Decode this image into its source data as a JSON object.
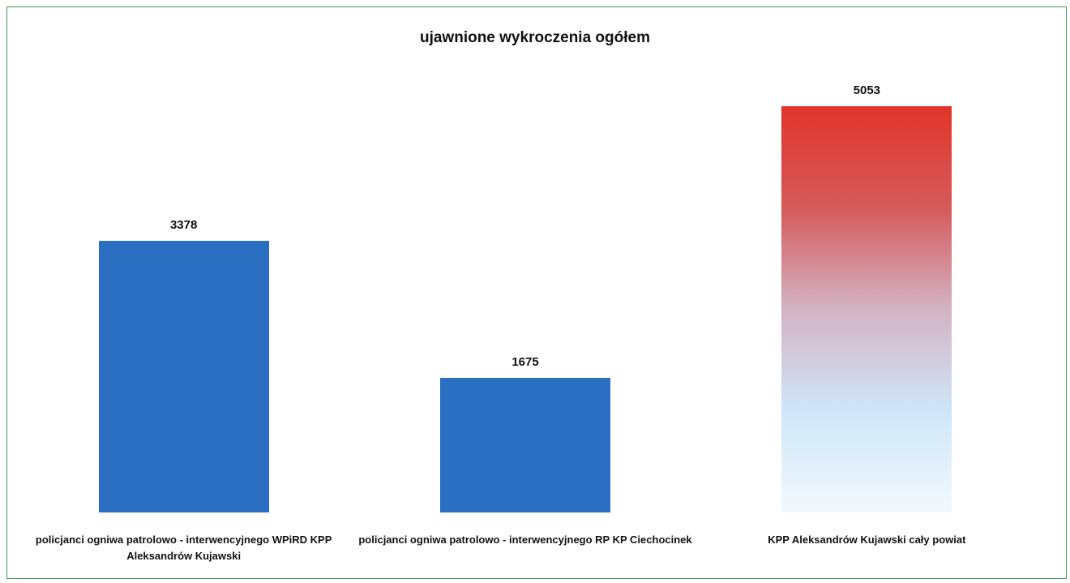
{
  "chart_data": {
    "type": "bar",
    "title": "ujawnione wykroczenia ogółem",
    "categories": [
      "policjanci ogniwa patrolowo - interwencyjnego WPiRD KPP Aleksandrów Kujawski",
      "policjanci ogniwa patrolowo - interwencyjnego RP KP Ciechocinek",
      "KPP Aleksandrów Kujawski cały powiat"
    ],
    "values": [
      3378,
      1675,
      5053
    ],
    "colors": [
      "#2a6fc1",
      "#2a6fc1",
      [
        "#e2342a",
        "#d55a5a",
        "#d3b3c4",
        "#cfe6f8",
        "#f2f9fd"
      ]
    ]
  }
}
